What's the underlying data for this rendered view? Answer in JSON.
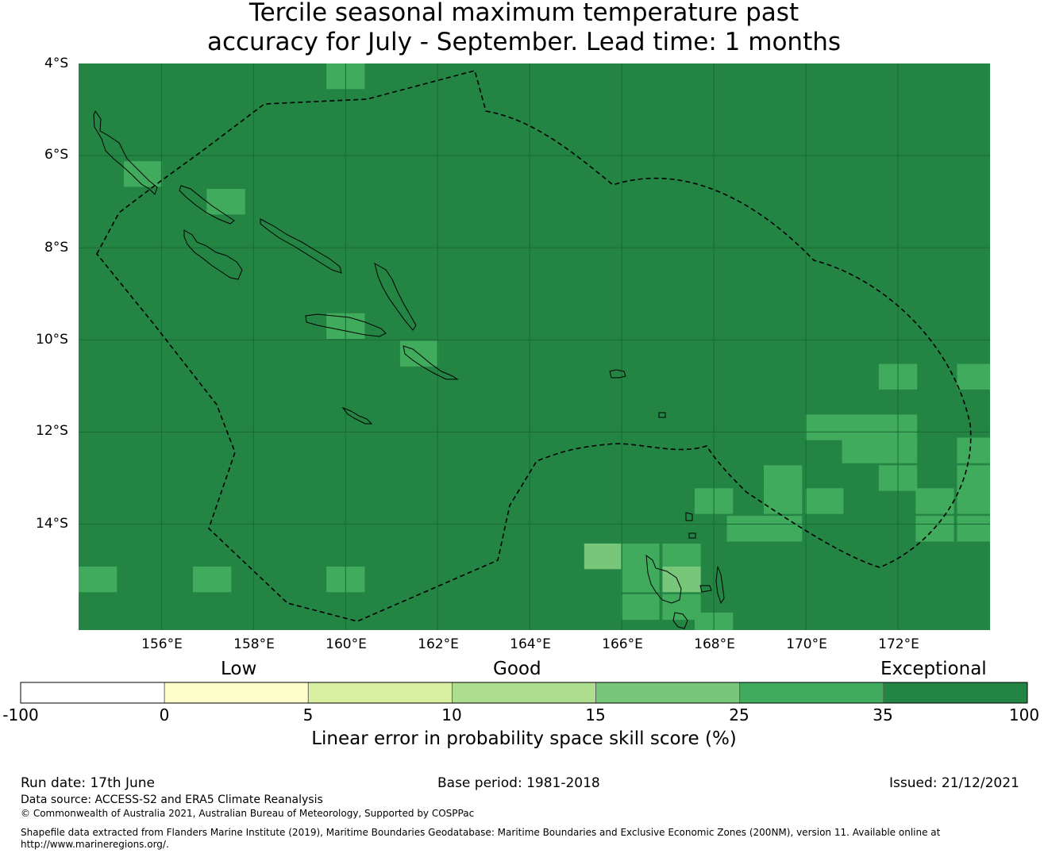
{
  "title": {
    "line1": "Tercile seasonal maximum temperature past",
    "line2": "accuracy for July - September. Lead time: 1 months"
  },
  "map": {
    "lat_labels": [
      "4°S",
      "6°S",
      "8°S",
      "10°S",
      "12°S",
      "14°S"
    ],
    "lon_labels": [
      "156°E",
      "158°E",
      "160°E",
      "162°E",
      "164°E",
      "166°E",
      "168°E",
      "170°E",
      "172°E"
    ],
    "extent": {
      "lon_min": 154.2,
      "lon_max": 174.0,
      "lat_min": -16.3,
      "lat_max": -4.0
    },
    "base_color": "#238443",
    "cells": [
      {
        "lon": 160.0,
        "lat": -4.2,
        "color": "#41ab5d"
      },
      {
        "lon": 155.6,
        "lat": -6.4,
        "color": "#41ab5d"
      },
      {
        "lon": 157.4,
        "lat": -7.0,
        "color": "#41ab5d"
      },
      {
        "lon": 160.0,
        "lat": -9.7,
        "color": "#41ab5d"
      },
      {
        "lon": 161.6,
        "lat": -10.3,
        "color": "#41ab5d"
      },
      {
        "lon": 172.0,
        "lat": -10.8,
        "color": "#41ab5d"
      },
      {
        "lon": 173.7,
        "lat": -10.8,
        "color": "#41ab5d"
      },
      {
        "lon": 170.4,
        "lat": -11.9,
        "color": "#41ab5d"
      },
      {
        "lon": 171.2,
        "lat": -11.9,
        "color": "#41ab5d"
      },
      {
        "lon": 172.0,
        "lat": -11.9,
        "color": "#41ab5d"
      },
      {
        "lon": 171.2,
        "lat": -12.4,
        "color": "#41ab5d"
      },
      {
        "lon": 172.0,
        "lat": -12.4,
        "color": "#41ab5d"
      },
      {
        "lon": 173.7,
        "lat": -12.4,
        "color": "#41ab5d"
      },
      {
        "lon": 172.0,
        "lat": -13.0,
        "color": "#41ab5d"
      },
      {
        "lon": 173.7,
        "lat": -13.0,
        "color": "#41ab5d"
      },
      {
        "lon": 169.5,
        "lat": -13.0,
        "color": "#41ab5d"
      },
      {
        "lon": 169.5,
        "lat": -13.5,
        "color": "#41ab5d"
      },
      {
        "lon": 170.4,
        "lat": -13.5,
        "color": "#41ab5d"
      },
      {
        "lon": 168.0,
        "lat": -13.5,
        "color": "#41ab5d"
      },
      {
        "lon": 172.8,
        "lat": -13.5,
        "color": "#41ab5d"
      },
      {
        "lon": 173.7,
        "lat": -13.5,
        "color": "#41ab5d"
      },
      {
        "lon": 168.7,
        "lat": -14.1,
        "color": "#41ab5d"
      },
      {
        "lon": 169.5,
        "lat": -14.1,
        "color": "#41ab5d"
      },
      {
        "lon": 172.8,
        "lat": -14.1,
        "color": "#41ab5d"
      },
      {
        "lon": 173.7,
        "lat": -14.1,
        "color": "#41ab5d"
      },
      {
        "lon": 165.6,
        "lat": -14.7,
        "color": "#78c679"
      },
      {
        "lon": 166.4,
        "lat": -14.7,
        "color": "#41ab5d"
      },
      {
        "lon": 167.3,
        "lat": -14.7,
        "color": "#41ab5d"
      },
      {
        "lon": 167.3,
        "lat": -15.2,
        "color": "#78c679"
      },
      {
        "lon": 166.4,
        "lat": -15.2,
        "color": "#41ab5d"
      },
      {
        "lon": 167.3,
        "lat": -15.8,
        "color": "#41ab5d"
      },
      {
        "lon": 166.4,
        "lat": -15.8,
        "color": "#41ab5d"
      },
      {
        "lon": 168.0,
        "lat": -16.2,
        "color": "#41ab5d"
      },
      {
        "lon": 154.6,
        "lat": -15.2,
        "color": "#41ab5d"
      },
      {
        "lon": 157.1,
        "lat": -15.2,
        "color": "#41ab5d"
      },
      {
        "lon": 160.0,
        "lat": -15.2,
        "color": "#41ab5d"
      }
    ]
  },
  "colorbar": {
    "category_labels": {
      "low": "Low",
      "good": "Good",
      "exceptional": "Exceptional"
    },
    "ticks": [
      "-100",
      "0",
      "5",
      "10",
      "15",
      "25",
      "35",
      "100"
    ],
    "colors": [
      "#ffffff",
      "#ffffcc",
      "#d9f0a3",
      "#addd8e",
      "#78c679",
      "#41ab5d",
      "#238443"
    ],
    "title": "Linear error in probability space skill score (%)"
  },
  "footer": {
    "run_date": "Run date: 17th June",
    "base_period": "Base period: 1981-2018",
    "issued": "Issued: 21/12/2021",
    "data_source": "Data source: ACCESS-S2 and ERA5 Climate Reanalysis",
    "copyright": "© Commonwealth of Australia 2021, Australian Bureau of Meteorology, Supported by COSPPac",
    "shapefile_line1": "Shapefile data extracted from Flanders Marine Institute (2019), Maritime Boundaries Geodatabase: Maritime Boundaries and Exclusive Economic Zones (200NM), version 11. Available online at",
    "shapefile_line2": "http://www.marineregions.org/."
  }
}
